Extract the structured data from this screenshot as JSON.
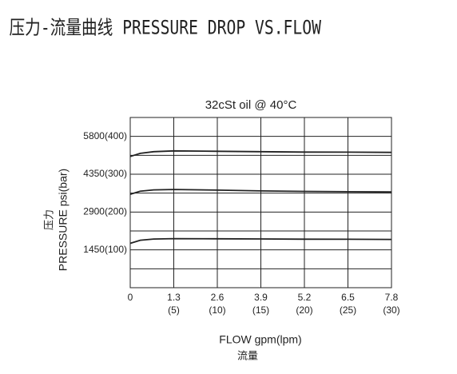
{
  "chart_data": {
    "type": "line",
    "page_title": "压力-流量曲线 PRESSURE DROP VS.FLOW",
    "title": "32cSt oil @ 40°C",
    "y_label": "PRESSURE psi(bar)",
    "y_label_cn": "压力",
    "x_label": "FLOW gpm(lpm)",
    "x_label_cn": "流量",
    "x": [
      0,
      0.3,
      0.7,
      1.3,
      2.6,
      3.9,
      5.2,
      6.5,
      7.8
    ],
    "series": [
      {
        "color": "#222222",
        "values": [
          5030,
          5150,
          5215,
          5245,
          5230,
          5215,
          5200,
          5195,
          5185
        ]
      },
      {
        "color": "#222222",
        "values": [
          3580,
          3700,
          3750,
          3765,
          3740,
          3710,
          3690,
          3680,
          3670
        ]
      },
      {
        "color": "#222222",
        "values": [
          1700,
          1820,
          1865,
          1880,
          1875,
          1870,
          1860,
          1855,
          1850
        ]
      }
    ],
    "xlim": [
      0,
      7.8
    ],
    "xticks": [
      0,
      {
        "value": 1.3,
        "label": "1.3",
        "sublabel": "(5)"
      },
      {
        "value": 2.6,
        "label": "2.6",
        "sublabel": "(10)"
      },
      {
        "value": 3.9,
        "label": "3.9",
        "sublabel": "(15)"
      },
      {
        "value": 5.2,
        "label": "5.2",
        "sublabel": "(20)"
      },
      {
        "value": 6.5,
        "label": "6.5",
        "sublabel": "(25)"
      },
      {
        "value": 7.8,
        "label": "7.8",
        "sublabel": "(30)"
      }
    ],
    "ylim": [
      0,
      6525
    ],
    "yticks": [
      {
        "value": 1450,
        "label": "1450(100)"
      },
      {
        "value": 2900,
        "label": "2900(200)"
      },
      {
        "value": 4350,
        "label": "4350(300)"
      },
      {
        "value": 5800,
        "label": "5800(400)"
      }
    ],
    "minor_yticks": [
      725,
      2175,
      3625,
      5075
    ],
    "grid": true
  }
}
